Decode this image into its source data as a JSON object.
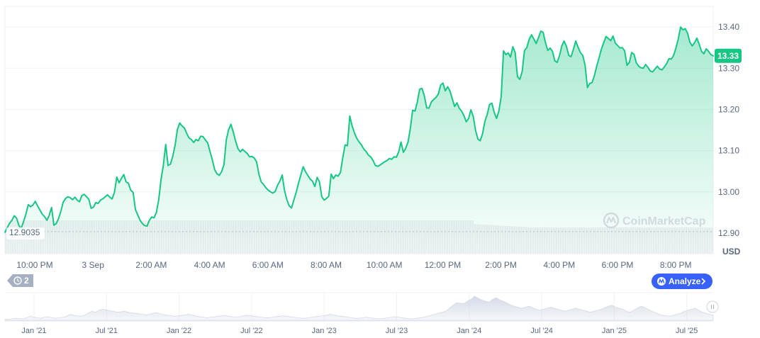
{
  "chart_data": {
    "type": "area",
    "currency_label": "USD",
    "current_price_label": "13.33",
    "current_price": 13.33,
    "baseline_label": "12.9035",
    "baseline": 12.9035,
    "ylim": [
      12.85,
      13.45
    ],
    "y_ticks": [
      {
        "label": "13.40",
        "value": 13.4
      },
      {
        "label": "13.30",
        "value": 13.3
      },
      {
        "label": "13.20",
        "value": 13.2
      },
      {
        "label": "13.10",
        "value": 13.1
      },
      {
        "label": "13.00",
        "value": 13.0
      },
      {
        "label": "12.90",
        "value": 12.9
      }
    ],
    "x_tick_labels": [
      "10:00 PM",
      "3 Sep",
      "2:00 AM",
      "4:00 AM",
      "6:00 AM",
      "8:00 AM",
      "10:00 AM",
      "12:00 PM",
      "2:00 PM",
      "4:00 PM",
      "6:00 PM",
      "8:00 PM"
    ],
    "watermark": "CoinMarketCap",
    "colors": {
      "line": "#16c784",
      "area_top": "#16c784",
      "badge_bg": "#16c784",
      "grid": "#eff2f5",
      "volume": "#eceef2",
      "analyze_bg": "#3861fb"
    },
    "series": [
      {
        "values": [
          12.902,
          12.913,
          12.924,
          12.931,
          12.942,
          12.936,
          12.918,
          12.912,
          12.928,
          12.946,
          12.969,
          12.964,
          12.968,
          12.977,
          12.966,
          12.956,
          12.946,
          12.94,
          12.931,
          12.943,
          12.962,
          12.919,
          12.923,
          12.935,
          12.953,
          12.975,
          12.984,
          12.988,
          12.986,
          12.981,
          12.987,
          12.98,
          12.976,
          12.991,
          12.994,
          12.988,
          12.982,
          12.96,
          12.963,
          12.974,
          12.972,
          12.98,
          12.983,
          12.988,
          12.993,
          12.987,
          12.983,
          12.999,
          13.036,
          13.022,
          13.033,
          13.042,
          13.024,
          13.021,
          13.004,
          12.999,
          12.957,
          12.944,
          12.931,
          12.923,
          12.918,
          12.917,
          12.931,
          12.939,
          12.937,
          12.95,
          12.981,
          13.03,
          13.065,
          13.115,
          13.064,
          13.067,
          13.086,
          13.112,
          13.151,
          13.167,
          13.16,
          13.155,
          13.142,
          13.131,
          13.127,
          13.12,
          13.127,
          13.124,
          13.135,
          13.134,
          13.126,
          13.119,
          13.098,
          13.078,
          13.054,
          13.044,
          13.04,
          13.049,
          13.066,
          13.126,
          13.151,
          13.164,
          13.145,
          13.123,
          13.105,
          13.097,
          13.103,
          13.098,
          13.093,
          13.085,
          13.086,
          13.082,
          13.073,
          13.043,
          13.024,
          13.018,
          13.01,
          13.004,
          13.0,
          12.997,
          13.001,
          13.016,
          13.026,
          13.041,
          13.003,
          12.981,
          12.966,
          12.961,
          12.98,
          12.999,
          13.021,
          13.041,
          13.061,
          13.049,
          13.04,
          13.031,
          13.026,
          13.013,
          13.035,
          13.024,
          12.988,
          12.98,
          12.984,
          12.99,
          13.043,
          13.032,
          13.041,
          13.038,
          13.047,
          13.083,
          13.114,
          13.112,
          13.184,
          13.16,
          13.143,
          13.13,
          13.121,
          13.114,
          13.104,
          13.098,
          13.089,
          13.085,
          13.076,
          13.064,
          13.062,
          13.065,
          13.069,
          13.073,
          13.076,
          13.081,
          13.079,
          13.085,
          13.084,
          13.097,
          13.121,
          13.096,
          13.105,
          13.121,
          13.154,
          13.198,
          13.196,
          13.218,
          13.249,
          13.251,
          13.233,
          13.204,
          13.203,
          13.218,
          13.224,
          13.229,
          13.237,
          13.259,
          13.264,
          13.245,
          13.255,
          13.245,
          13.226,
          13.207,
          13.216,
          13.203,
          13.196,
          13.185,
          13.17,
          13.178,
          13.199,
          13.183,
          13.149,
          13.128,
          13.124,
          13.141,
          13.171,
          13.188,
          13.212,
          13.215,
          13.193,
          13.178,
          13.196,
          13.231,
          13.342,
          13.333,
          13.337,
          13.327,
          13.352,
          13.338,
          13.279,
          13.273,
          13.292,
          13.343,
          13.35,
          13.37,
          13.381,
          13.371,
          13.36,
          13.374,
          13.39,
          13.387,
          13.362,
          13.343,
          13.349,
          13.341,
          13.318,
          13.314,
          13.33,
          13.354,
          13.366,
          13.353,
          13.331,
          13.328,
          13.346,
          13.366,
          13.351,
          13.338,
          13.331,
          13.308,
          13.253,
          13.263,
          13.265,
          13.282,
          13.305,
          13.325,
          13.346,
          13.362,
          13.377,
          13.372,
          13.367,
          13.378,
          13.361,
          13.355,
          13.349,
          13.35,
          13.342,
          13.307,
          13.314,
          13.338,
          13.334,
          13.313,
          13.305,
          13.301,
          13.3,
          13.309,
          13.302,
          13.293,
          13.291,
          13.298,
          13.305,
          13.298,
          13.296,
          13.303,
          13.311,
          13.323,
          13.322,
          13.331,
          13.349,
          13.371,
          13.4,
          13.393,
          13.396,
          13.385,
          13.363,
          13.354,
          13.362,
          13.373,
          13.358,
          13.341,
          13.335,
          13.347,
          13.341,
          13.333,
          13.33
        ]
      }
    ]
  },
  "ui": {
    "history_badge": "2",
    "analyze_button": "Analyze",
    "nav_labels": [
      "Jan '21",
      "Jul '21",
      "Jan '22",
      "Jul '22",
      "Jan '23",
      "Jul '23",
      "Jan '24",
      "Jul '24",
      "Jan '25",
      "Jul '25"
    ],
    "nav_volume": [
      2,
      2.5,
      3,
      4,
      3,
      3,
      5,
      8,
      6,
      5,
      4,
      6,
      7,
      5,
      4,
      5,
      6,
      8,
      12,
      10,
      9,
      8,
      10,
      14,
      18,
      16,
      20,
      22,
      21,
      19,
      18,
      16,
      17,
      18,
      16,
      15,
      14,
      13,
      12,
      11,
      12,
      14,
      15,
      13,
      11,
      10,
      9,
      8,
      9,
      10,
      11,
      12,
      10,
      8,
      7,
      6,
      5,
      6,
      7,
      8,
      9,
      10,
      8,
      7,
      6,
      7,
      9,
      10,
      9,
      8,
      7,
      6,
      5,
      5,
      6,
      7,
      8,
      9,
      8,
      7,
      6,
      5,
      4,
      4,
      5,
      6,
      7,
      8,
      9,
      10,
      12,
      11,
      9,
      8,
      7,
      6,
      5,
      4,
      4,
      5,
      6,
      5,
      4,
      3,
      3,
      4,
      5,
      6,
      7,
      6,
      5,
      4,
      3,
      3,
      4,
      5,
      6,
      8,
      10,
      12,
      14,
      16,
      18,
      24,
      30,
      35,
      34,
      33,
      38,
      42,
      48,
      44,
      40,
      38,
      36,
      42,
      45,
      40,
      38,
      34,
      30,
      28,
      26,
      24,
      26,
      28,
      25,
      22,
      20,
      22,
      24,
      26,
      24,
      22,
      20,
      18,
      20,
      22,
      24,
      22,
      20,
      18,
      16,
      18,
      20,
      22,
      25,
      28,
      30,
      26,
      24,
      22,
      18,
      16,
      20,
      24,
      28,
      26,
      22,
      18,
      15,
      12,
      10,
      9,
      8,
      10,
      12,
      14,
      18,
      20,
      22,
      24,
      20,
      16,
      14,
      12,
      10
    ]
  }
}
